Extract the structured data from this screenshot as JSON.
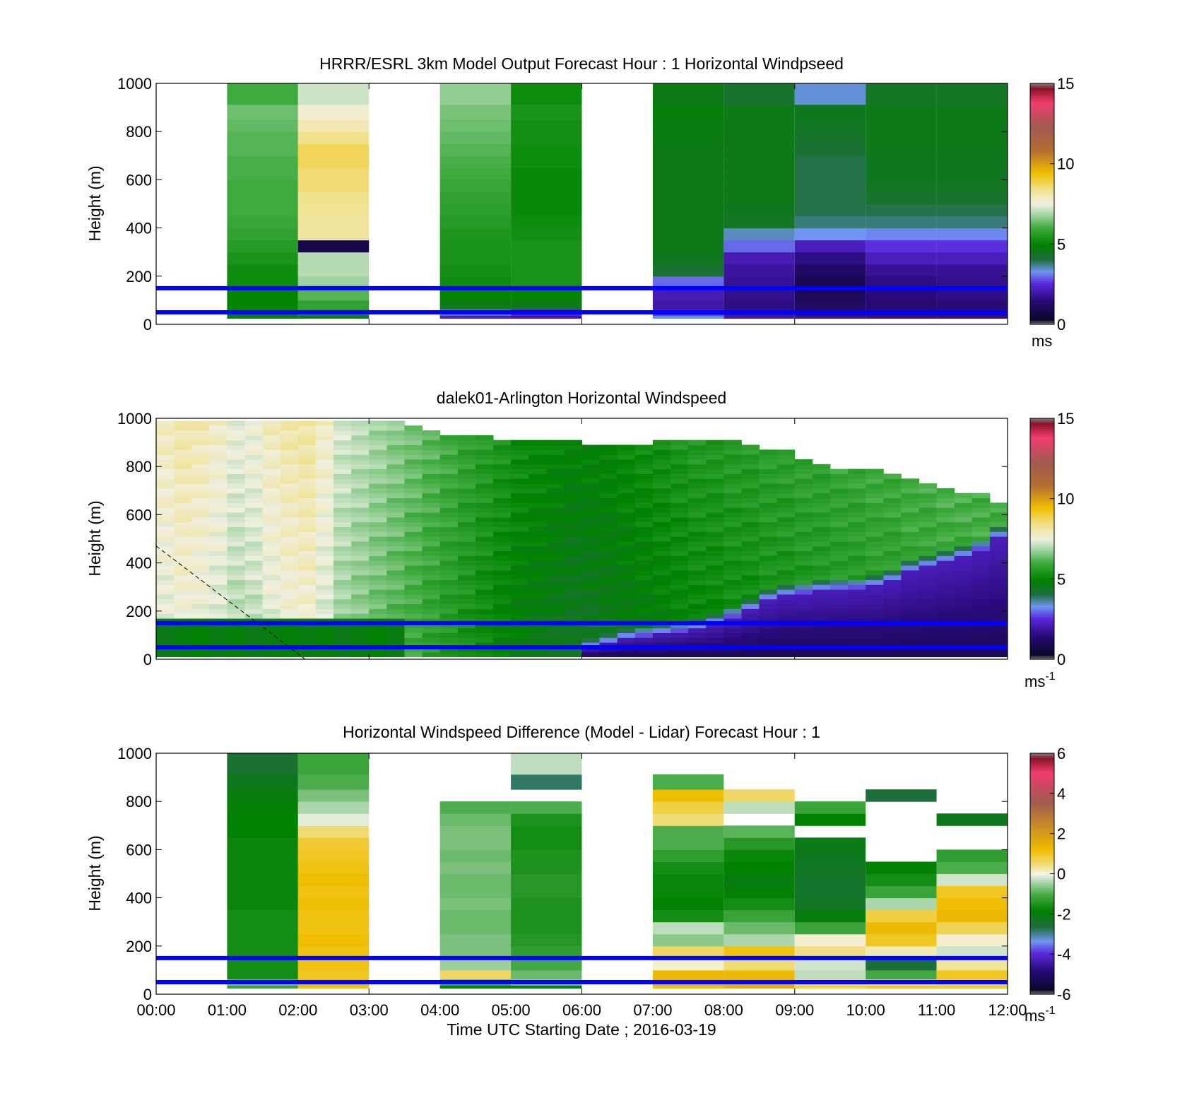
{
  "figure": {
    "xlabel": "Time UTC  Starting Date ; 2016-03-19",
    "x_ticks": [
      "00:00",
      "01:00",
      "02:00",
      "03:00",
      "04:00",
      "05:00",
      "06:00",
      "07:00",
      "08:00",
      "09:00",
      "10:00",
      "11:00",
      "12:00"
    ]
  },
  "chart_data": [
    {
      "type": "heatmap",
      "title": "HRRR/ESRL 3km Model Output   Forecast Hour : 1 Horizontal Windpseed",
      "ylabel": "Height (m)",
      "x_range_hours": [
        0,
        12
      ],
      "ylim": [
        0,
        1000
      ],
      "y_ticks": [
        "0",
        "200",
        "400",
        "600",
        "800",
        "1000"
      ],
      "colorbar": {
        "min": 0,
        "max": 15,
        "ticks": [
          "0",
          "5",
          "10",
          "15"
        ],
        "unit": "ms"
      },
      "reference_lines_m": [
        50,
        150
      ],
      "reference_line_color": "#0000ff",
      "heights_m": [
        25,
        50,
        75,
        125,
        175,
        225,
        275,
        325,
        375,
        425,
        475,
        525,
        575,
        625,
        675,
        725,
        775,
        825,
        875,
        950
      ],
      "columns": [
        {
          "start_hour": 1,
          "end_hour": 2,
          "values": [
            4.6,
            4.8,
            5.0,
            5.0,
            5.2,
            5.2,
            5.4,
            5.6,
            5.8,
            5.9,
            6.0,
            6.0,
            6.0,
            6.1,
            6.1,
            6.2,
            6.2,
            6.3,
            6.4,
            6.0
          ]
        },
        {
          "start_hour": 2,
          "end_hour": 3,
          "values": [
            4.4,
            5.4,
            5.8,
            6.2,
            6.8,
            7.0,
            7.0,
            0.8,
            8.2,
            8.2,
            8.3,
            8.4,
            8.6,
            8.6,
            8.8,
            8.8,
            8.4,
            8.0,
            7.7,
            7.2
          ]
        },
        {
          "start_hour": 4,
          "end_hour": 5,
          "values": [
            2.2,
            3.2,
            4.6,
            5.0,
            5.2,
            5.3,
            5.4,
            5.4,
            5.5,
            5.6,
            5.7,
            5.8,
            5.9,
            6.0,
            6.1,
            6.2,
            6.3,
            6.4,
            6.5,
            6.7
          ]
        },
        {
          "start_hour": 5,
          "end_hour": 6,
          "values": [
            2.0,
            2.4,
            4.6,
            5.0,
            5.4,
            5.4,
            5.4,
            5.4,
            5.3,
            5.2,
            5.1,
            5.1,
            5.1,
            5.1,
            5.2,
            5.2,
            5.3,
            5.3,
            5.4,
            5.2
          ]
        },
        {
          "start_hour": 7,
          "end_hour": 8,
          "values": [
            3.4,
            2.5,
            2.0,
            2.1,
            3.0,
            4.2,
            4.5,
            4.6,
            4.6,
            4.6,
            4.6,
            4.6,
            4.6,
            4.6,
            4.6,
            4.6,
            4.7,
            4.7,
            4.8,
            4.6
          ]
        },
        {
          "start_hour": 8,
          "end_hour": 9,
          "values": [
            2.0,
            1.8,
            1.6,
            1.7,
            1.8,
            1.9,
            2.1,
            3.0,
            3.5,
            4.4,
            4.5,
            4.6,
            4.6,
            4.6,
            4.6,
            4.6,
            4.6,
            4.6,
            4.6,
            4.3
          ]
        },
        {
          "start_hour": 9,
          "end_hour": 10,
          "values": [
            1.8,
            1.4,
            1.2,
            1.0,
            0.9,
            1.2,
            1.6,
            2.2,
            3.3,
            3.8,
            4.0,
            4.0,
            4.0,
            4.0,
            4.0,
            4.2,
            4.3,
            4.4,
            4.5,
            3.4
          ]
        },
        {
          "start_hour": 10,
          "end_hour": 11,
          "values": [
            1.7,
            1.5,
            1.4,
            1.5,
            1.6,
            1.8,
            2.2,
            2.6,
            3.2,
            3.8,
            4.0,
            4.3,
            4.4,
            4.5,
            4.5,
            4.6,
            4.6,
            4.6,
            4.6,
            4.4
          ]
        },
        {
          "start_hour": 11,
          "end_hour": 12,
          "values": [
            1.7,
            1.5,
            1.5,
            1.6,
            1.7,
            1.8,
            2.2,
            2.6,
            3.2,
            3.8,
            4.0,
            4.3,
            4.4,
            4.5,
            4.5,
            4.6,
            4.6,
            4.6,
            4.6,
            4.4
          ]
        }
      ]
    },
    {
      "type": "heatmap",
      "title": "dalek01-Arlington  Horizontal Windspeed",
      "ylabel": "Height (m)",
      "x_range_hours": [
        0,
        12
      ],
      "ylim": [
        0,
        1000
      ],
      "y_ticks": [
        "0",
        "200",
        "400",
        "600",
        "800",
        "1000"
      ],
      "colorbar": {
        "min": 0,
        "max": 15,
        "ticks": [
          "0",
          "5",
          "10",
          "15"
        ],
        "unit": "ms",
        "unit_superscript": "-1"
      },
      "reference_lines_m": [
        50,
        150
      ],
      "reference_line_color": "#0000ff",
      "annotation_line": {
        "from": [
          0,
          470
        ],
        "to": [
          2.1,
          0
        ],
        "style": "dashed"
      },
      "column_width_hours": 0.25,
      "column_hours": [
        0.125,
        0.375,
        0.625,
        0.875,
        1.125,
        1.375,
        1.625,
        1.875,
        2.125,
        2.375,
        2.625,
        2.875,
        3.125,
        3.375,
        3.625,
        3.875,
        4.125,
        4.375,
        4.625,
        4.875,
        5.125,
        5.375,
        5.625,
        5.875,
        6.125,
        6.375,
        6.625,
        6.875,
        7.125,
        7.375,
        7.625,
        7.875,
        8.125,
        8.375,
        8.625,
        8.875,
        9.125,
        9.375,
        9.625,
        9.875,
        10.125,
        10.375,
        10.625,
        10.875,
        11.125,
        11.375,
        11.625,
        11.875
      ],
      "low_level_jet_top_m": [
        0,
        0,
        0,
        0,
        0,
        0,
        0,
        0,
        0,
        0,
        0,
        0,
        0,
        0,
        0,
        0,
        0,
        0,
        0,
        0,
        0,
        0,
        0,
        0,
        40,
        60,
        80,
        90,
        100,
        110,
        120,
        140,
        170,
        200,
        240,
        260,
        270,
        280,
        285,
        290,
        300,
        320,
        360,
        380,
        400,
        420,
        450,
        500
      ],
      "column_top_m": [
        990,
        990,
        990,
        990,
        990,
        990,
        990,
        990,
        990,
        990,
        990,
        990,
        990,
        990,
        960,
        950,
        930,
        920,
        920,
        910,
        910,
        900,
        900,
        900,
        890,
        890,
        890,
        890,
        900,
        900,
        900,
        900,
        900,
        880,
        870,
        860,
        820,
        800,
        790,
        780,
        780,
        760,
        740,
        720,
        700,
        690,
        680,
        650
      ],
      "upper_speed_ms": [
        7.6,
        7.8,
        7.7,
        7.5,
        7.2,
        7.3,
        7.6,
        7.8,
        7.9,
        7.5,
        7.0,
        6.8,
        6.6,
        6.4,
        6.2,
        6.0,
        5.8,
        5.6,
        5.4,
        5.2,
        5.0,
        4.9,
        4.8,
        4.7,
        4.7,
        4.8,
        4.9,
        5.0,
        5.1,
        5.2,
        5.3,
        5.3,
        5.4,
        5.4,
        5.5,
        5.5,
        5.6,
        5.6,
        5.7,
        5.7,
        5.8,
        5.8,
        5.9,
        5.9,
        6.0,
        6.0,
        6.0,
        6.0
      ]
    },
    {
      "type": "heatmap",
      "title": "Horizontal Windspeed Difference (Model - Lidar) Forecast Hour : 1",
      "ylabel": "Height (m)",
      "x_range_hours": [
        0,
        12
      ],
      "ylim": [
        0,
        1000
      ],
      "y_ticks": [
        "0",
        "200",
        "400",
        "600",
        "800",
        "1000"
      ],
      "colorbar": {
        "min": -6,
        "max": 6,
        "ticks": [
          "-6",
          "-4",
          "-2",
          "0",
          "2",
          "4",
          "6"
        ],
        "unit": "ms",
        "unit_superscript": "-1"
      },
      "reference_lines_m": [
        50,
        150
      ],
      "reference_line_color": "#0000ff",
      "heights_m": [
        25,
        50,
        75,
        125,
        175,
        225,
        275,
        325,
        375,
        425,
        475,
        525,
        575,
        625,
        675,
        725,
        775,
        825,
        875,
        950
      ],
      "columns": [
        {
          "start_hour": 1,
          "end_hour": 2,
          "values": [
            -1.2,
            -0.6,
            -1.6,
            -1.6,
            -1.6,
            -1.6,
            -1.6,
            -1.6,
            -1.7,
            -1.7,
            -1.7,
            -1.7,
            -1.7,
            -1.7,
            -1.8,
            -1.8,
            -1.9,
            -2.0,
            -2.2,
            -2.5
          ]
        },
        {
          "start_hour": 2,
          "end_hour": 3,
          "values": [
            1.1,
            1.2,
            1.0,
            1.1,
            1.1,
            1.2,
            1.1,
            1.1,
            1.2,
            1.1,
            1.2,
            1.1,
            1.0,
            0.9,
            0.5,
            -0.1,
            -0.4,
            -0.7,
            -1.0,
            -1.2
          ]
        },
        {
          "start_hour": 4,
          "end_hour": 5,
          "values": [
            -1.8,
            -0.9,
            0.6,
            -0.5,
            -0.7,
            -0.7,
            -0.8,
            -0.8,
            -0.7,
            -0.8,
            -0.8,
            -0.7,
            -0.8,
            -0.7,
            -0.7,
            -0.8,
            -1.0,
            null,
            null,
            null
          ]
        },
        {
          "start_hour": 5,
          "end_hour": 6,
          "values": [
            -2.0,
            -0.5,
            -0.8,
            -1.1,
            -1.3,
            -1.4,
            -1.5,
            -1.5,
            -1.5,
            -1.4,
            -1.4,
            -1.5,
            -1.5,
            -1.6,
            -1.6,
            -1.5,
            -1.0,
            null,
            -2.8,
            -0.3
          ]
        },
        {
          "start_hour": 7,
          "end_hour": 8,
          "values": [
            1.1,
            1.6,
            1.3,
            0.1,
            0.6,
            -0.6,
            -0.3,
            -1.6,
            -1.8,
            -1.7,
            -1.7,
            -1.6,
            -1.3,
            -1.0,
            -1.0,
            0.5,
            0.8,
            1.2,
            -1.0,
            null
          ]
        },
        {
          "start_hour": 8,
          "end_hour": 9,
          "values": [
            1.6,
            1.5,
            1.3,
            0.5,
            1.1,
            -0.4,
            -0.8,
            -1.2,
            -1.6,
            -1.9,
            -2.0,
            -1.8,
            -1.7,
            -1.4,
            -0.9,
            null,
            -0.3,
            0.6,
            null,
            null
          ]
        },
        {
          "start_hour": 9,
          "end_hour": 10,
          "values": [
            0.8,
            0.4,
            -0.3,
            -0.2,
            0.4,
            0.1,
            -1.2,
            -2.0,
            -2.3,
            -2.4,
            -2.4,
            -2.3,
            -2.2,
            -2.1,
            null,
            -1.8,
            -1.2,
            null,
            null,
            null
          ]
        },
        {
          "start_hour": 10,
          "end_hour": 11,
          "values": [
            1.0,
            0.3,
            -1.1,
            -2.6,
            0.2,
            1.0,
            1.3,
            0.8,
            -0.4,
            -1.2,
            -1.6,
            -1.8,
            null,
            null,
            null,
            null,
            null,
            -2.6,
            null,
            null
          ]
        },
        {
          "start_hour": 11,
          "end_hour": 12,
          "values": [
            0.9,
            0.5,
            1.0,
            0.3,
            -0.2,
            0.1,
            0.7,
            1.3,
            1.2,
            1.0,
            -0.2,
            -1.0,
            -1.3,
            null,
            null,
            -2.2,
            null,
            null,
            null,
            null
          ]
        }
      ]
    }
  ],
  "colors": {
    "reference_line": "#0000ff",
    "axes": "#000000",
    "grid": "none"
  }
}
